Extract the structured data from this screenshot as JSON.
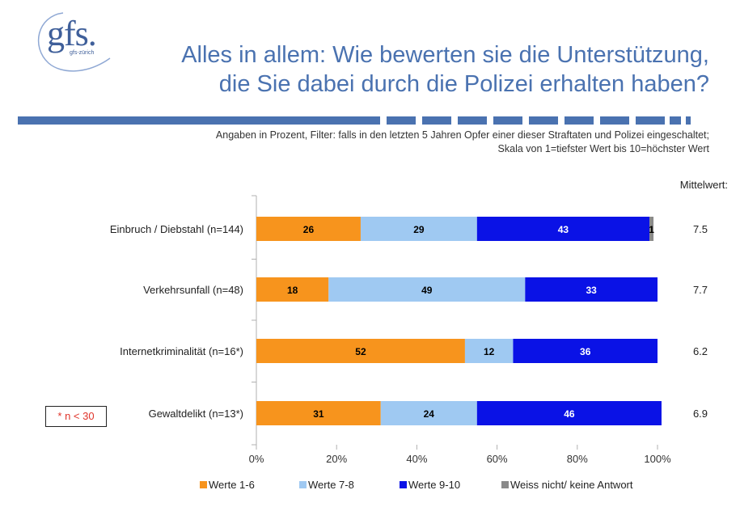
{
  "logo": {
    "text": "gfs.",
    "subtext": "gfs-zürich"
  },
  "title": {
    "line1": "Alles in allem: Wie bewerten sie die Unterstützung,",
    "line2": "die Sie dabei durch die Polizei erhalten haben?"
  },
  "subtitle": {
    "line1": "Angaben in Prozent, Filter: falls in den letzten 5 Jahren Opfer einer dieser Straftaten und Polizei eingeschaltet;",
    "line2": "Skala von 1=tiefster Wert bis 10=höchster Wert"
  },
  "note": "* n < 30",
  "colors": {
    "title": "#4a72b0",
    "rule": "#4a72b0",
    "orange": "#f7941d",
    "light_blue": "#9fc9f2",
    "dark_blue": "#0a12e6",
    "gray": "#8a8a8a"
  },
  "chart_data": {
    "type": "bar",
    "orientation": "horizontal",
    "stacked": true,
    "categories": [
      "Einbruch / Diebstahl (n=144)",
      "Verkehrsunfall (n=48)",
      "Internetkriminalität (n=16*)",
      "Gewaltdelikt (n=13*)"
    ],
    "series": [
      {
        "name": "Werte 1-6",
        "values": [
          26,
          18,
          52,
          31
        ],
        "color": "#f7941d",
        "label_color": "#000000"
      },
      {
        "name": "Werte 7-8",
        "values": [
          29,
          49,
          12,
          24
        ],
        "color": "#9fc9f2",
        "label_color": "#000000"
      },
      {
        "name": "Werte 9-10",
        "values": [
          43,
          33,
          36,
          46
        ],
        "color": "#0a12e6",
        "label_color": "#ffffff"
      },
      {
        "name": "Weiss nicht/ keine Antwort",
        "values": [
          1,
          0,
          0,
          0
        ],
        "color": "#8a8a8a",
        "label_color": "#000000"
      }
    ],
    "mean_header": "Mittelwert:",
    "means": [
      "7.5",
      "7.7",
      "6.2",
      "6.9"
    ],
    "x_ticks": [
      "0%",
      "20%",
      "40%",
      "60%",
      "80%",
      "100%"
    ],
    "xlim": [
      0,
      100
    ],
    "grid": false,
    "legend_position": "bottom"
  }
}
